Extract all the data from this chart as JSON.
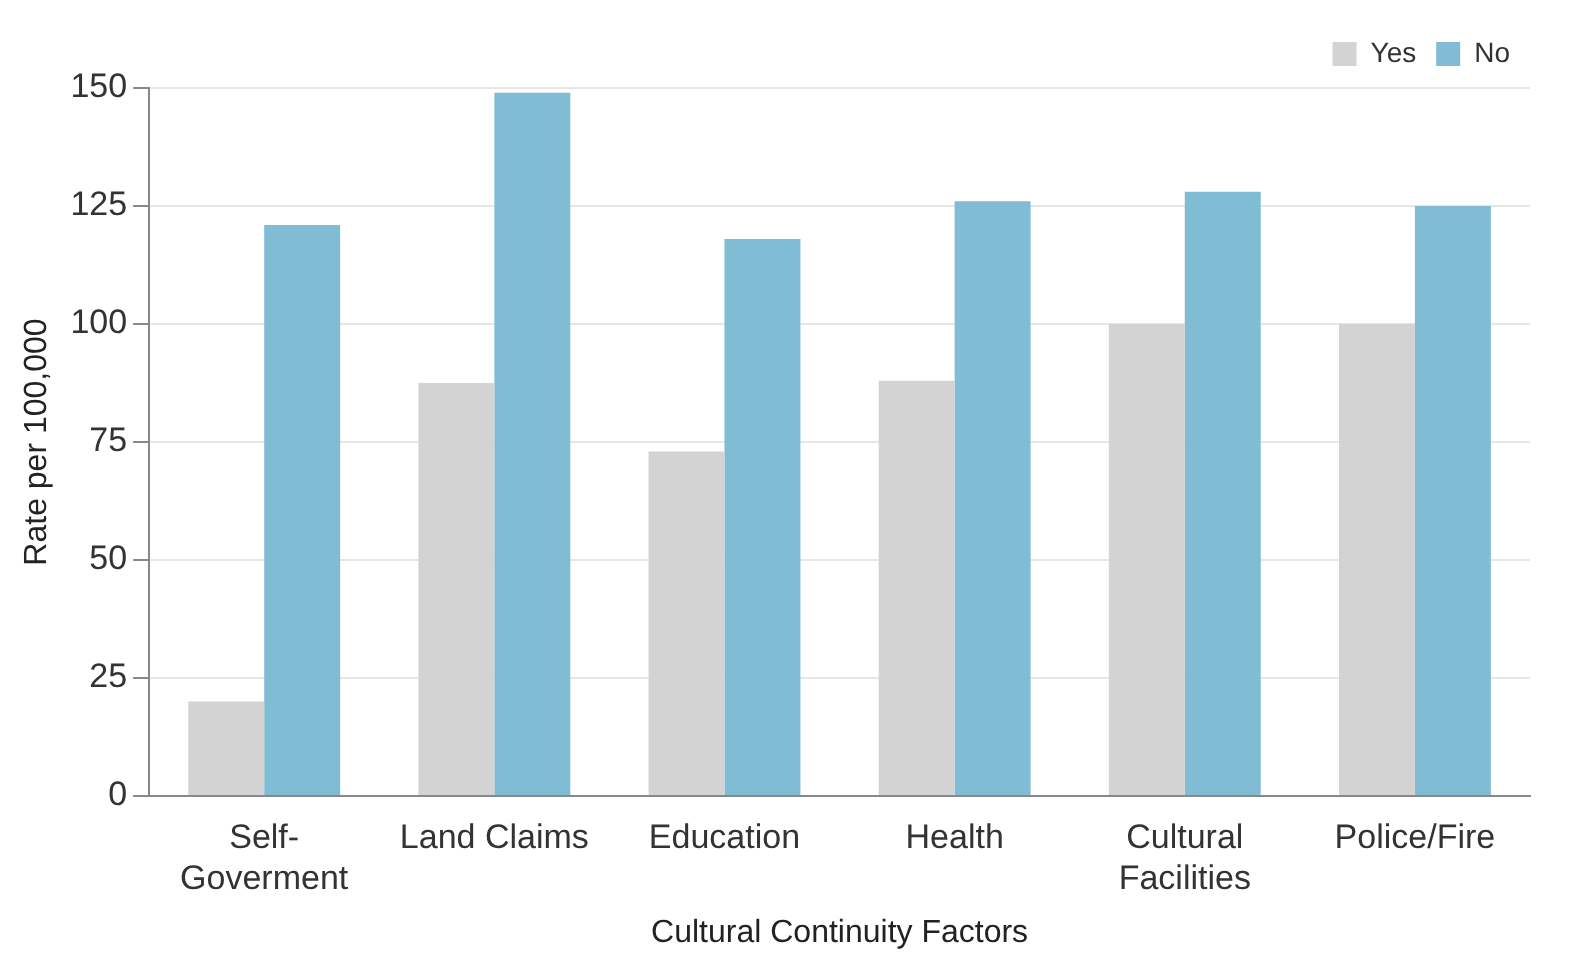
{
  "chart_data": {
    "type": "bar",
    "xlabel": "Cultural Continuity Factors",
    "ylabel": "Rate per 100,000",
    "categories": [
      "Self-Goverment",
      "Land Claims",
      "Education",
      "Health",
      "Cultural Facilities",
      "Police/Fire"
    ],
    "series": [
      {
        "name": "Yes",
        "color": "#d3d3d3",
        "values": [
          20,
          87.5,
          73,
          88,
          100,
          100
        ]
      },
      {
        "name": "No",
        "color": "#80bcd3",
        "values": [
          121,
          149,
          118,
          126,
          128,
          125
        ]
      }
    ],
    "ylim": [
      0,
      150
    ],
    "yticks": [
      0,
      25,
      50,
      75,
      100,
      125,
      150
    ],
    "grid": "y",
    "legend": "top right"
  }
}
